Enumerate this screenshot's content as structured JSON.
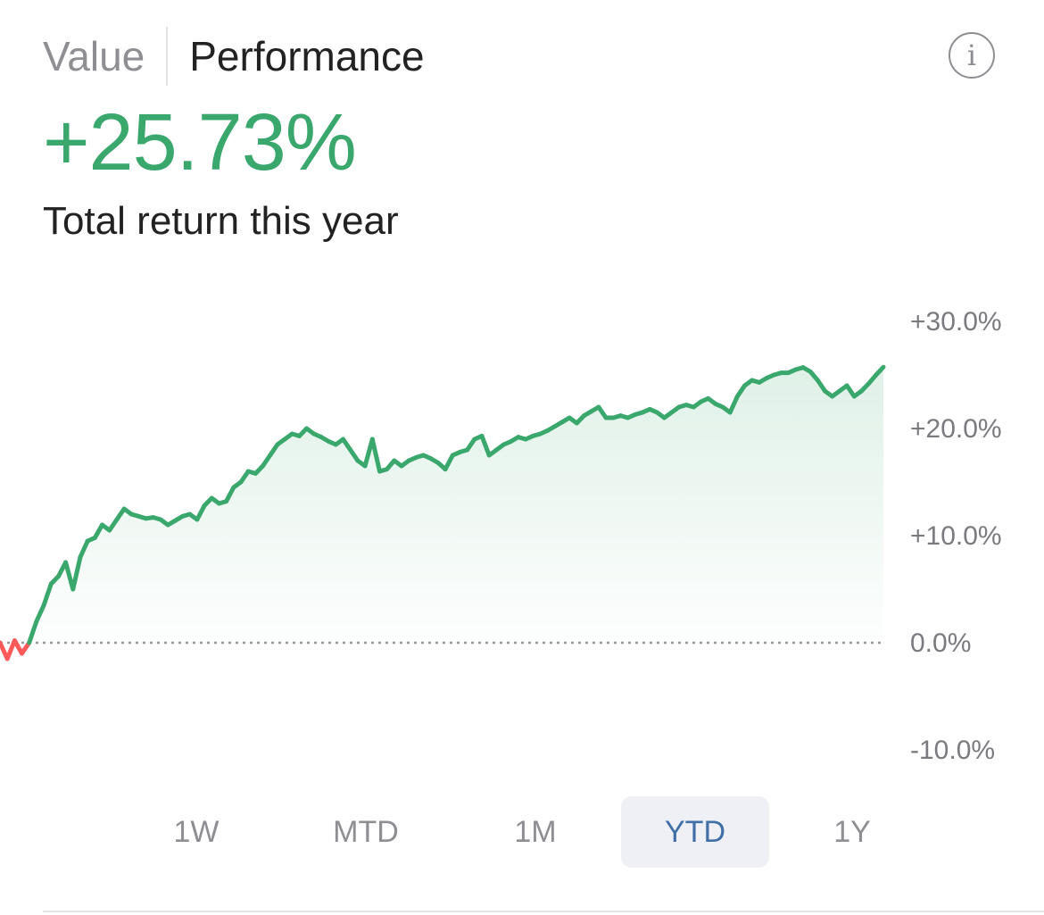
{
  "tabs": {
    "value": "Value",
    "performance": "Performance",
    "active": "performance"
  },
  "info_icon": {
    "name": "info-icon",
    "glyph": "i"
  },
  "summary": {
    "value": "+25.73%",
    "label": "Total return this year"
  },
  "colors": {
    "positive": "#3aa76d",
    "negative": "#ff5a5a",
    "active_range_bg": "#eef0f5",
    "active_range_text": "#3f6fa6"
  },
  "ranges": [
    {
      "label": "1W",
      "active": false
    },
    {
      "label": "MTD",
      "active": false
    },
    {
      "label": "1M",
      "active": false
    },
    {
      "label": "YTD",
      "active": true
    },
    {
      "label": "1Y",
      "active": false
    }
  ],
  "chart_data": {
    "type": "area",
    "ylim": [
      -10,
      30
    ],
    "yticks": [
      "+30.0%",
      "+20.0%",
      "+10.0%",
      "0.0%",
      "-10.0%"
    ],
    "baseline": 0,
    "grid": false,
    "series": [
      {
        "values": [
          0.0,
          -1.5,
          0.2,
          -1.0,
          0.0,
          2.0,
          3.5,
          5.5,
          6.2,
          7.5,
          5.0,
          8.0,
          9.5,
          9.8,
          11.0,
          10.5,
          11.5,
          12.5,
          12.0,
          11.8,
          11.6,
          11.7,
          11.5,
          11.0,
          11.4,
          11.8,
          12.0,
          11.5,
          12.8,
          13.5,
          13.0,
          13.2,
          14.5,
          15.0,
          16.0,
          15.8,
          16.5,
          17.5,
          18.5,
          19.0,
          19.5,
          19.3,
          20.0,
          19.5,
          19.2,
          18.8,
          18.5,
          19.0,
          18.0,
          17.0,
          16.5,
          19.0,
          16.0,
          16.2,
          17.0,
          16.5,
          17.0,
          17.3,
          17.5,
          17.2,
          16.8,
          16.2,
          17.5,
          17.8,
          18.0,
          19.0,
          19.3,
          17.5,
          18.0,
          18.5,
          18.8,
          19.2,
          19.0,
          19.3,
          19.5,
          19.8,
          20.2,
          20.6,
          21.0,
          20.5,
          21.2,
          21.6,
          22.0,
          21.0,
          21.0,
          21.2,
          21.0,
          21.3,
          21.5,
          21.8,
          21.5,
          21.0,
          21.5,
          22.0,
          22.2,
          22.0,
          22.5,
          22.8,
          22.3,
          22.0,
          21.5,
          23.0,
          24.0,
          24.5,
          24.3,
          24.7,
          25.0,
          25.2,
          25.2,
          25.5,
          25.7,
          25.3,
          24.5,
          23.5,
          23.0,
          23.5,
          24.0,
          23.0,
          23.5,
          24.2,
          25.0,
          25.73
        ]
      }
    ]
  }
}
